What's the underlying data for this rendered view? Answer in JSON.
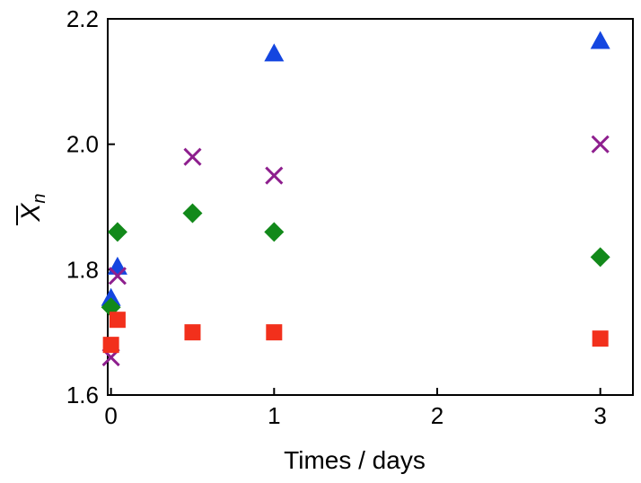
{
  "chart_data": {
    "type": "scatter",
    "title": "",
    "xlabel": "Times / days",
    "ylabel": "X",
    "ylabel_subscript": "n",
    "xlim": [
      -0.02,
      3.2
    ],
    "ylim": [
      1.6,
      2.2
    ],
    "x_ticks": [
      0,
      1,
      2,
      3
    ],
    "y_ticks": [
      1.6,
      1.8,
      2.0,
      2.2
    ],
    "x_tick_labels": [
      "0",
      "1",
      "2",
      "3"
    ],
    "y_tick_labels": [
      "1.6",
      "1.8",
      "2.0",
      "2.2"
    ],
    "grid": false,
    "legend": "none",
    "series": [
      {
        "marker": "triangle",
        "color": "#1446e0",
        "points": [
          [
            0.0,
            1.755
          ],
          [
            0.04,
            1.805
          ],
          [
            1.0,
            2.145
          ],
          [
            3.0,
            2.165
          ]
        ]
      },
      {
        "marker": "cross",
        "color": "#8e1f8e",
        "points": [
          [
            0.0,
            1.66
          ],
          [
            0.04,
            1.79
          ],
          [
            0.5,
            1.98
          ],
          [
            1.0,
            1.95
          ],
          [
            3.0,
            2.0
          ]
        ]
      },
      {
        "marker": "diamond",
        "color": "#12891a",
        "points": [
          [
            0.0,
            1.74
          ],
          [
            0.04,
            1.86
          ],
          [
            0.5,
            1.89
          ],
          [
            1.0,
            1.86
          ],
          [
            3.0,
            1.82
          ]
        ]
      },
      {
        "marker": "square",
        "color": "#f2301c",
        "points": [
          [
            0.0,
            1.68
          ],
          [
            0.04,
            1.72
          ],
          [
            0.5,
            1.7
          ],
          [
            1.0,
            1.7
          ],
          [
            3.0,
            1.69
          ]
        ]
      }
    ]
  }
}
